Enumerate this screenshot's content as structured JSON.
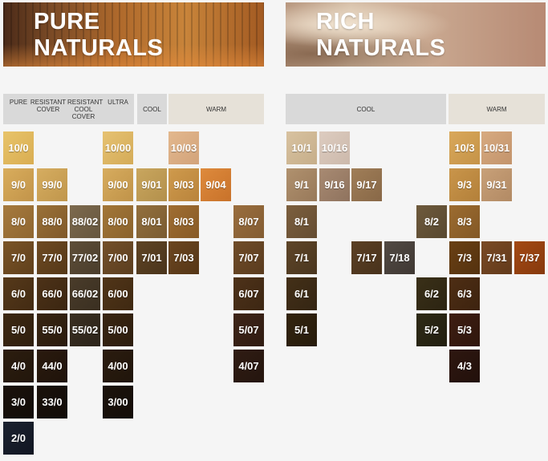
{
  "pure": {
    "title_line1": "PURE",
    "title_line2": "NATURALS",
    "headers": {
      "pure": "PURE",
      "resistant_cover": "RESISTANT COVER",
      "resistant_cool_cover": "RESISTANT COOL COVER",
      "ultra": "ULTRA",
      "cool": "COOL",
      "warm": "WARM"
    }
  },
  "rich": {
    "title_line1": "RICH",
    "title_line2": "NATURALS",
    "headers": {
      "cool": "COOL",
      "warm": "WARM"
    }
  },
  "swatches": {
    "p_10_0": "10/0",
    "p_9_0": "9/0",
    "p_8_0": "8/0",
    "p_7_0": "7/0",
    "p_6_0": "6/0",
    "p_5_0": "5/0",
    "p_4_0": "4/0",
    "p_3_0": "3/0",
    "p_2_0": "2/0",
    "rc_99_0": "99/0",
    "rc_88_0": "88/0",
    "rc_77_0": "77/0",
    "rc_66_0": "66/0",
    "rc_55_0": "55/0",
    "rc_44_0": "44/0",
    "rc_33_0": "33/0",
    "rcc_88_02": "88/02",
    "rcc_77_02": "77/02",
    "rcc_66_02": "66/02",
    "rcc_55_02": "55/02",
    "u_10_00": "10/00",
    "u_9_00": "9/00",
    "u_8_00": "8/00",
    "u_7_00": "7/00",
    "u_6_00": "6/00",
    "u_5_00": "5/00",
    "u_4_00": "4/00",
    "u_3_00": "3/00",
    "pc_9_01": "9/01",
    "pc_8_01": "8/01",
    "pc_7_01": "7/01",
    "pw_10_03": "10/03",
    "pw_9_03": "9/03",
    "pw_9_04": "9/04",
    "pw_8_03": "8/03",
    "pw_7_03": "7/03",
    "pw_8_07": "8/07",
    "pw_7_07": "7/07",
    "pw_6_07": "6/07",
    "pw_5_07": "5/07",
    "pw_4_07": "4/07",
    "r_10_1": "10/1",
    "r_10_16": "10/16",
    "r_9_1": "9/1",
    "r_9_16": "9/16",
    "r_9_17": "9/17",
    "r_8_1": "8/1",
    "r_8_2": "8/2",
    "r_7_1": "7/1",
    "r_7_17": "7/17",
    "r_7_18": "7/18",
    "r_6_1": "6/1",
    "r_6_2": "6/2",
    "r_5_1": "5/1",
    "r_5_2": "5/2",
    "rw_10_3": "10/3",
    "rw_10_31": "10/31",
    "rw_9_3": "9/3",
    "rw_9_31": "9/31",
    "rw_8_3": "8/3",
    "rw_7_3": "7/3",
    "rw_7_31": "7/31",
    "rw_7_37": "7/37",
    "rw_6_3": "6/3",
    "rw_5_3": "5/3",
    "rw_4_3": "4/3"
  }
}
